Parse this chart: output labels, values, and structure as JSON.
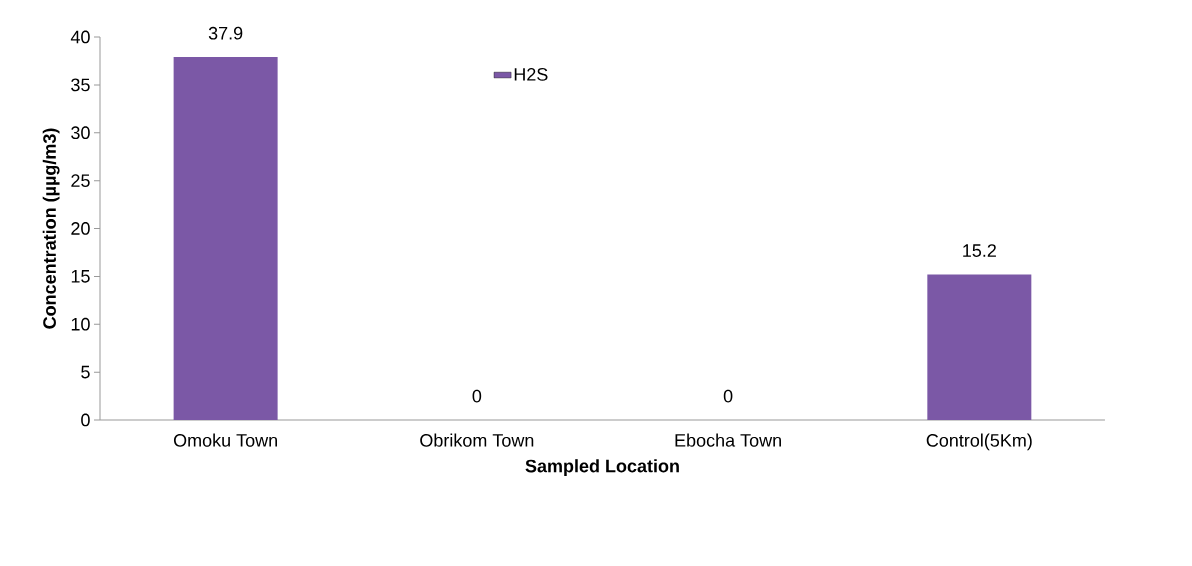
{
  "chart_data": {
    "type": "bar",
    "xlabel": "Sampled Location",
    "ylabel": "Concentration (µµg/m3)",
    "categories": [
      "Omoku Town",
      "Obrikom Town",
      "Ebocha Town",
      "Control(5Km)"
    ],
    "series": [
      {
        "name": "H2S",
        "color": "#7b58a6",
        "values": [
          37.9,
          0,
          0,
          15.2
        ],
        "value_labels": [
          "37.9",
          "0",
          "0",
          "15.2"
        ]
      }
    ],
    "ylim": [
      0,
      40
    ],
    "yticks": [
      0,
      5,
      10,
      15,
      20,
      25,
      30,
      35,
      40
    ],
    "grid": false,
    "legend": "top"
  }
}
